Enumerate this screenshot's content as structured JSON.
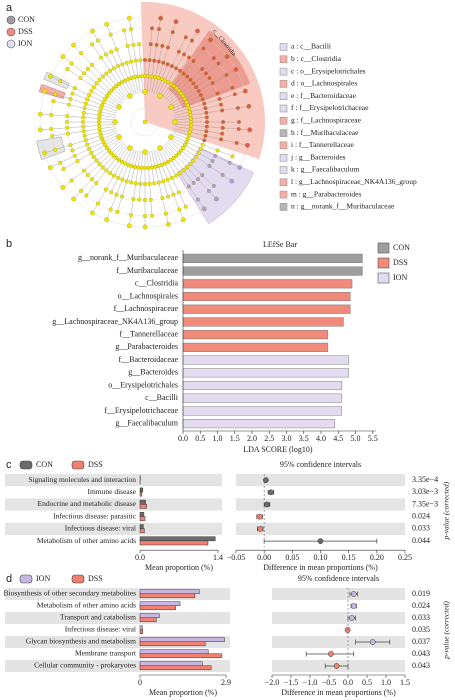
{
  "cladogram": {
    "panel_label": "a",
    "arc_label": "c__Clostridia",
    "legend": [
      {
        "name": "CON",
        "color": "#9e9e9e"
      },
      {
        "name": "DSS",
        "color": "#f08a7a"
      },
      {
        "name": "ION",
        "color": "#e3dcf0"
      }
    ],
    "clades": [
      {
        "label": "a : c__Bacilli",
        "color": "#e3dcf0"
      },
      {
        "label": "b : c__Clostridia",
        "color": "#f4b0a4"
      },
      {
        "label": "c : o__Erysipelotrichales",
        "color": "#e3dcf0"
      },
      {
        "label": "d : o__Lachnospirales",
        "color": "#f4b0a4"
      },
      {
        "label": "e : f__Bacteroidaceae",
        "color": "#e3dcf0"
      },
      {
        "label": "f : f__Erysipelotrichaceae",
        "color": "#e3dcf0"
      },
      {
        "label": "g : f__Lachnospiraceae",
        "color": "#f4b0a4"
      },
      {
        "label": "h : f__Muribaculaceae",
        "color": "#b5b5b5"
      },
      {
        "label": "i : f__Tannerellaceae",
        "color": "#f4b0a4"
      },
      {
        "label": "j : g__Bacteroides",
        "color": "#e3dcf0"
      },
      {
        "label": "k : g__Faecalibaculum",
        "color": "#e3dcf0"
      },
      {
        "label": "l : g__Lachnospiraceae_NK4A136_group",
        "color": "#f4b0a4"
      },
      {
        "label": "m : g__Parabacteroides",
        "color": "#f4b0a4"
      },
      {
        "label": "n : g__norank_f__Muribaculaceae",
        "color": "#b5b5b5"
      }
    ]
  },
  "chart_data": [
    {
      "type": "hbar",
      "panel_label": "b",
      "title": "LEfSe Bar",
      "xlabel": "LDA SCORE (log10)",
      "xlim": [
        0,
        5.5
      ],
      "xticks": [
        {
          "value": 0,
          "label": "0.0"
        },
        0.5,
        {
          "value": 1,
          "label": "1.0"
        },
        1.5,
        {
          "value": 2,
          "label": "2.0"
        },
        2.5,
        {
          "value": 3,
          "label": "3.0"
        },
        3.5,
        {
          "value": 4,
          "label": "4.0"
        },
        4.5,
        {
          "value": 5,
          "label": "5.0"
        },
        5.5
      ],
      "series": [
        {
          "name": "CON",
          "color": "#9e9e9e",
          "categories": [
            "g__norank_f__Muribaculaceae",
            "f__Muribaculaceae"
          ],
          "values": [
            5.2,
            5.2
          ]
        },
        {
          "name": "DSS",
          "color": "#f08a7a",
          "categories": [
            "c__Clostridia",
            "o__Lachnospirales",
            "f__Lachnospiraceae",
            "g__Lachnospiraceae_NK4A136_group",
            "f__Tannerellaceae",
            "g__Parabacteroides"
          ],
          "values": [
            4.9,
            4.85,
            4.85,
            4.65,
            4.2,
            4.2
          ]
        },
        {
          "name": "ION",
          "color": "#e3dcf0",
          "categories": [
            "f__Bacteroidaceae",
            "g__Bacteroides",
            "o__Erysipelotrichales",
            "c__Bacilli",
            "f__Erysipelotrichaceae",
            "g__Faecalibaculum"
          ],
          "values": [
            4.8,
            4.8,
            4.6,
            4.6,
            4.6,
            4.4
          ]
        }
      ]
    },
    {
      "type": "extended_error_bar",
      "panel_label": "c",
      "title": "95% confidence intervals",
      "xlabel": "Mean proportion (%)",
      "ylabel": "p-value (corrected)",
      "categories": [
        "Signaling molecules and interaction",
        "Immune disease",
        "Endocrine and metabolic disease",
        "Infectious disease: parasitic",
        "Infectious disease: viral",
        "Metabolism of other amino acids"
      ],
      "xlim": [
        0,
        1.4
      ],
      "xticks": [
        {
          "value": 0,
          "label": "0.0"
        },
        1.4
      ],
      "series": [
        {
          "name": "CON",
          "color": "#6b6b6b",
          "values": [
            0.005,
            0.05,
            0.1,
            0.07,
            0.06,
            1.35
          ]
        },
        {
          "name": "DSS",
          "color": "#f08070",
          "values": [
            0.003,
            0.03,
            0.12,
            0.09,
            0.08,
            1.22
          ]
        }
      ],
      "diff": {
        "xlabel": "Difference in mean proportions (%)",
        "xlim": [
          -0.05,
          0.25
        ],
        "xticks": [
          {
            "value": -0.05,
            "label": "−0.05"
          },
          {
            "value": 0,
            "label": "0.00"
          },
          0.05,
          {
            "value": 0.1,
            "label": "0.10"
          },
          0.15,
          {
            "value": 0.2,
            "label": "0.20"
          },
          0.25
        ],
        "values": [
          0.003,
          0.012,
          0.005,
          -0.008,
          -0.007,
          0.1
        ],
        "ci_low": [
          0.001,
          0.007,
          0.0,
          -0.013,
          -0.012,
          0.0
        ],
        "ci_high": [
          0.005,
          0.017,
          0.01,
          -0.003,
          -0.002,
          0.2
        ]
      },
      "p_values": {
        "values": [
          0.000335,
          0.00303,
          0.00735,
          0.024,
          0.033,
          0.044
        ],
        "value_labels": [
          "3.35e−4",
          "3.03e−3",
          "7.35e−3",
          "0.024",
          "0.033",
          "0.044"
        ]
      }
    },
    {
      "type": "extended_error_bar",
      "panel_label": "d",
      "title": "95% confidence intervals",
      "xlabel": "Mean proportion (%)",
      "ylabel": "p-value (corrected)",
      "categories": [
        "Biosynthesis of other secondary metabolites",
        "Metabolism of other amino acids",
        "Transport and catabolism",
        "Infectious disease: viral",
        "Glycan biosynthesis and metabolism",
        "Membrane transport",
        "Cellular community - prokaryotes"
      ],
      "xlim": [
        0,
        2.9
      ],
      "xticks": [
        0,
        2.9
      ],
      "series": [
        {
          "name": "ION",
          "color": "#c8b6e2",
          "values": [
            2.0,
            1.35,
            0.65,
            0.08,
            2.85,
            2.3,
            2.1
          ]
        },
        {
          "name": "DSS",
          "color": "#f08070",
          "values": [
            1.85,
            1.2,
            0.55,
            0.09,
            2.2,
            2.75,
            2.4
          ]
        }
      ],
      "diff": {
        "xlabel": "Difference in mean proportions (%)",
        "xlim": [
          -2.0,
          1.5
        ],
        "xticks": [
          {
            "value": -2,
            "label": "−2.0"
          },
          {
            "value": -1.5,
            "label": "−1.5"
          },
          {
            "value": -1,
            "label": "−1.0"
          },
          {
            "value": -0.5,
            "label": "−0.5"
          },
          {
            "value": 0,
            "label": "0.0"
          },
          0.5,
          {
            "value": 1,
            "label": "1.0"
          },
          1.5
        ],
        "values": [
          0.15,
          0.15,
          0.1,
          -0.01,
          0.65,
          -0.45,
          -0.3
        ],
        "ci_low": [
          0.05,
          0.08,
          0.0,
          -0.05,
          0.2,
          -1.1,
          -0.6
        ],
        "ci_high": [
          0.25,
          0.22,
          0.2,
          0.03,
          1.1,
          0.15,
          0.0
        ]
      },
      "p_values": {
        "values": [
          0.019,
          0.024,
          0.033,
          0.035,
          0.037,
          0.043,
          0.043
        ]
      }
    }
  ]
}
